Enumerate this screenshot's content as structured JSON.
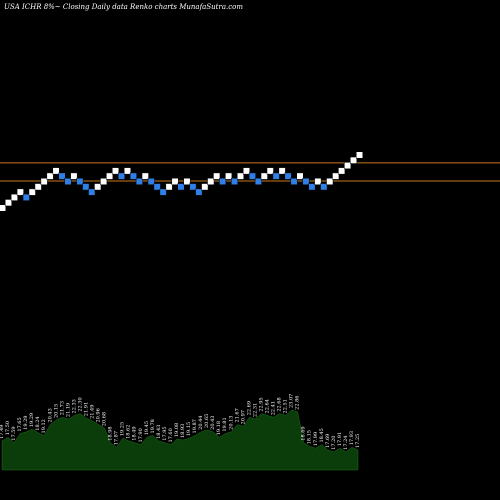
{
  "chart_data": {
    "type": "renko",
    "title": "USA ICHR 8%~  Closing Daily data Renko charts MunafaSutra.com",
    "colors": {
      "background": "#000000",
      "up_brick": "#ffffff",
      "down_brick": "#2f7fe6",
      "reference_line": "#c8781e",
      "volume_fill": "#0b3d0b",
      "text": "#ffffff"
    },
    "reference_lines": [
      24.09,
      21.07
    ],
    "bricks": [
      {
        "dir": "up",
        "value": 17.25
      },
      {
        "dir": "up",
        "value": 17.94
      },
      {
        "dir": "up",
        "value": 18.66
      },
      {
        "dir": "up",
        "value": 19.4
      },
      {
        "dir": "down",
        "value": 18.66
      },
      {
        "dir": "up",
        "value": 19.4
      },
      {
        "dir": "up",
        "value": 20.18
      },
      {
        "dir": "up",
        "value": 20.99
      },
      {
        "dir": "up",
        "value": 21.83
      },
      {
        "dir": "up",
        "value": 22.7
      },
      {
        "dir": "down",
        "value": 21.83
      },
      {
        "dir": "down",
        "value": 20.99
      },
      {
        "dir": "up",
        "value": 21.83
      },
      {
        "dir": "down",
        "value": 20.99
      },
      {
        "dir": "down",
        "value": 20.18
      },
      {
        "dir": "down",
        "value": 19.4
      },
      {
        "dir": "up",
        "value": 20.18
      },
      {
        "dir": "up",
        "value": 20.99
      },
      {
        "dir": "up",
        "value": 21.83
      },
      {
        "dir": "up",
        "value": 22.7
      },
      {
        "dir": "down",
        "value": 21.83
      },
      {
        "dir": "up",
        "value": 22.7
      },
      {
        "dir": "down",
        "value": 21.83
      },
      {
        "dir": "down",
        "value": 20.99
      },
      {
        "dir": "up",
        "value": 21.83
      },
      {
        "dir": "down",
        "value": 20.99
      },
      {
        "dir": "down",
        "value": 20.18
      },
      {
        "dir": "down",
        "value": 19.4
      },
      {
        "dir": "up",
        "value": 20.18
      },
      {
        "dir": "up",
        "value": 20.99
      },
      {
        "dir": "down",
        "value": 20.18
      },
      {
        "dir": "up",
        "value": 20.99
      },
      {
        "dir": "down",
        "value": 20.18
      },
      {
        "dir": "down",
        "value": 19.4
      },
      {
        "dir": "up",
        "value": 20.18
      },
      {
        "dir": "up",
        "value": 20.99
      },
      {
        "dir": "up",
        "value": 21.83
      },
      {
        "dir": "down",
        "value": 20.99
      },
      {
        "dir": "up",
        "value": 21.83
      },
      {
        "dir": "down",
        "value": 20.99
      },
      {
        "dir": "up",
        "value": 21.83
      },
      {
        "dir": "up",
        "value": 22.7
      },
      {
        "dir": "down",
        "value": 21.83
      },
      {
        "dir": "down",
        "value": 20.99
      },
      {
        "dir": "up",
        "value": 21.83
      },
      {
        "dir": "up",
        "value": 22.7
      },
      {
        "dir": "down",
        "value": 21.83
      },
      {
        "dir": "up",
        "value": 22.7
      },
      {
        "dir": "down",
        "value": 21.83
      },
      {
        "dir": "down",
        "value": 20.99
      },
      {
        "dir": "up",
        "value": 21.83
      },
      {
        "dir": "down",
        "value": 20.99
      },
      {
        "dir": "down",
        "value": 20.18
      },
      {
        "dir": "up",
        "value": 20.99
      },
      {
        "dir": "down",
        "value": 20.18
      },
      {
        "dir": "up",
        "value": 20.99
      },
      {
        "dir": "up",
        "value": 21.83
      },
      {
        "dir": "up",
        "value": 22.7
      },
      {
        "dir": "up",
        "value": 23.61
      },
      {
        "dir": "up",
        "value": 24.55
      },
      {
        "dir": "up",
        "value": 25.53
      }
    ],
    "volume_labels": [
      "17.49",
      "17.50",
      "17.59",
      "17.65",
      "19.29",
      "19.29",
      "18.24",
      "19.12",
      "20.43",
      "20.15",
      "21.73",
      "21.19",
      "22.33",
      "22.30",
      "21.91",
      "21.49",
      "20.96",
      "20.68",
      "18.98",
      "17.87",
      "19.25",
      "18.62",
      "18.49",
      "17.90",
      "19.45",
      "19.78",
      "18.43",
      "17.95",
      "17.60",
      "19.08",
      "18.93",
      "19.15",
      "19.87",
      "20.44",
      "20.65",
      "20.43",
      "19.18",
      "19.81",
      "20.13",
      "21.67",
      "20.97",
      "22.69",
      "22.31",
      "22.95",
      "22.64",
      "22.41",
      "22.68",
      "22.51",
      "23.07",
      "22.86",
      "18.69",
      "18.15",
      "17.99",
      "18.45",
      "17.69",
      "17.20",
      "17.91",
      "17.24",
      "17.93",
      "17.25"
    ],
    "volume_values": [
      32,
      36,
      30,
      40,
      42,
      45,
      41,
      38,
      50,
      55,
      58,
      56,
      60,
      62,
      57,
      54,
      50,
      46,
      30,
      25,
      35,
      32,
      30,
      28,
      36,
      38,
      32,
      30,
      28,
      34,
      33,
      35,
      38,
      42,
      44,
      42,
      36,
      40,
      42,
      50,
      48,
      58,
      56,
      62,
      60,
      58,
      62,
      60,
      66,
      64,
      30,
      26,
      24,
      28,
      22,
      20,
      24,
      20,
      25,
      22
    ]
  }
}
